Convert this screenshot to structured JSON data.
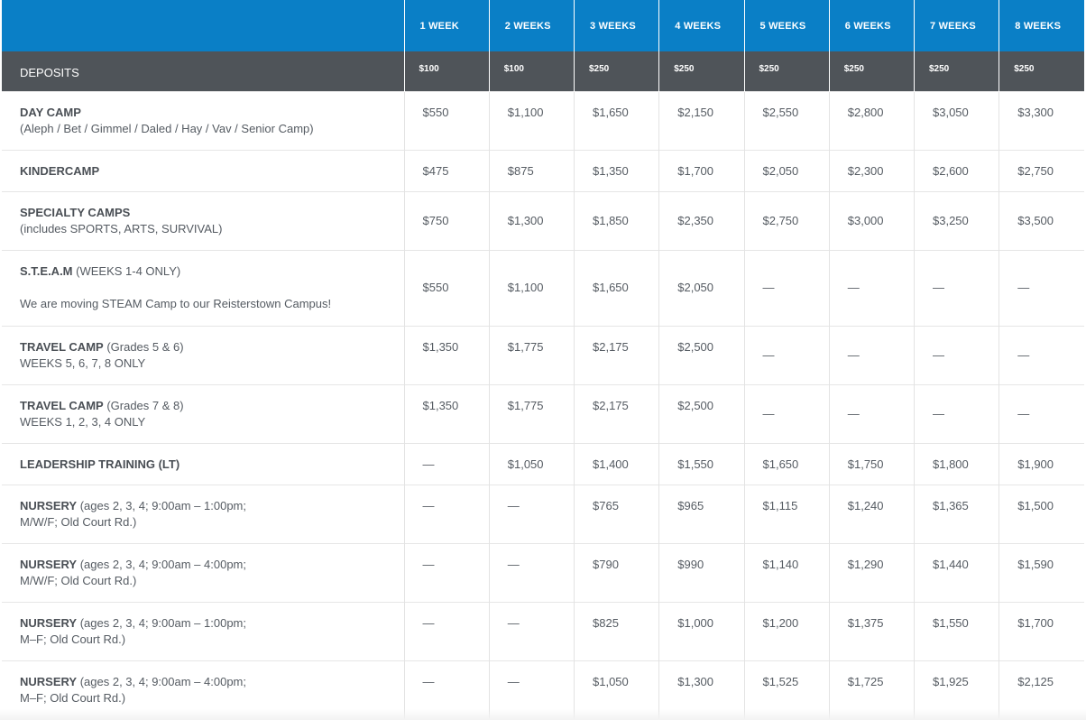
{
  "header": {
    "weeks": [
      "1 WEEK",
      "2 WEEKS",
      "3 WEEKS",
      "4 WEEKS",
      "5 WEEKS",
      "6 WEEKS",
      "7 WEEKS",
      "8 WEEKS"
    ],
    "deposits_label": "DEPOSITS",
    "deposits": [
      "$100",
      "$100",
      "$250",
      "$250",
      "$250",
      "$250",
      "$250",
      "$250"
    ]
  },
  "rows": [
    {
      "name": "DAY CAMP",
      "suffix": "",
      "note": "(Aleph / Bet / Gimmel / Daled / Hay / Vav / Senior Camp)",
      "prices": [
        "$550",
        "$1,100",
        "$1,650",
        "$2,150",
        "$2,550",
        "$2,800",
        "$3,050",
        "$3,300"
      ]
    },
    {
      "name": "KINDERCAMP",
      "suffix": "",
      "note": "",
      "prices": [
        "$475",
        "$875",
        "$1,350",
        "$1,700",
        "$2,050",
        "$2,300",
        "$2,600",
        "$2,750"
      ]
    },
    {
      "name": "SPECIALTY CAMPS",
      "suffix": "",
      "note": "(includes SPORTS, ARTS, SURVIVAL)",
      "prices": [
        "$750",
        "$1,300",
        "$1,850",
        "$2,350",
        "$2,750",
        "$3,000",
        "$3,250",
        "$3,500"
      ]
    },
    {
      "name": "S.T.E.A.M",
      "suffix": " (WEEKS 1-4 ONLY)",
      "note": "We are moving STEAM Camp to our Reisterstown Campus!",
      "prices": [
        "$550",
        "$1,100",
        "$1,650",
        "$2,050",
        "—",
        "—",
        "—",
        "—"
      ]
    },
    {
      "name": "TRAVEL CAMP",
      "suffix": " (Grades 5 & 6)",
      "note": "WEEKS 5, 6, 7, 8 ONLY",
      "prices": [
        "$1,350",
        "$1,775",
        "$2,175",
        "$2,500",
        "—",
        "—",
        "—",
        "—"
      ]
    },
    {
      "name": "TRAVEL CAMP",
      "suffix": " (Grades 7 & 8)",
      "note": "WEEKS 1, 2, 3, 4 ONLY",
      "prices": [
        "$1,350",
        "$1,775",
        "$2,175",
        "$2,500",
        "—",
        "—",
        "—",
        "—"
      ]
    },
    {
      "name": "LEADERSHIP TRAINING (LT)",
      "suffix": "",
      "note": "",
      "prices": [
        "—",
        "$1,050",
        "$1,400",
        "$1,550",
        "$1,650",
        "$1,750",
        "$1,800",
        "$1,900"
      ]
    },
    {
      "name": "NURSERY",
      "suffix": " (ages 2, 3, 4; 9:00am – 1:00pm;",
      "note": "M/W/F; Old Court Rd.)",
      "prices": [
        "—",
        "—",
        "$765",
        "$965",
        "$1,115",
        "$1,240",
        "$1,365",
        "$1,500"
      ]
    },
    {
      "name": "NURSERY",
      "suffix": " (ages 2, 3, 4; 9:00am – 4:00pm;",
      "note": "M/W/F; Old Court Rd.)",
      "prices": [
        "—",
        "—",
        "$790",
        "$990",
        "$1,140",
        "$1,290",
        "$1,440",
        "$1,590"
      ]
    },
    {
      "name": "NURSERY",
      "suffix": " (ages 2, 3, 4; 9:00am – 1:00pm;",
      "note": "M–F; Old Court Rd.)",
      "prices": [
        "—",
        "—",
        "$825",
        "$1,000",
        "$1,200",
        "$1,375",
        "$1,550",
        "$1,700"
      ]
    },
    {
      "name": "NURSERY",
      "suffix": " (ages 2, 3, 4; 9:00am – 4:00pm;",
      "note": "M–F; Old Court Rd.)",
      "prices": [
        "—",
        "—",
        "$1,050",
        "$1,300",
        "$1,525",
        "$1,725",
        "$1,925",
        "$2,125"
      ]
    }
  ]
}
